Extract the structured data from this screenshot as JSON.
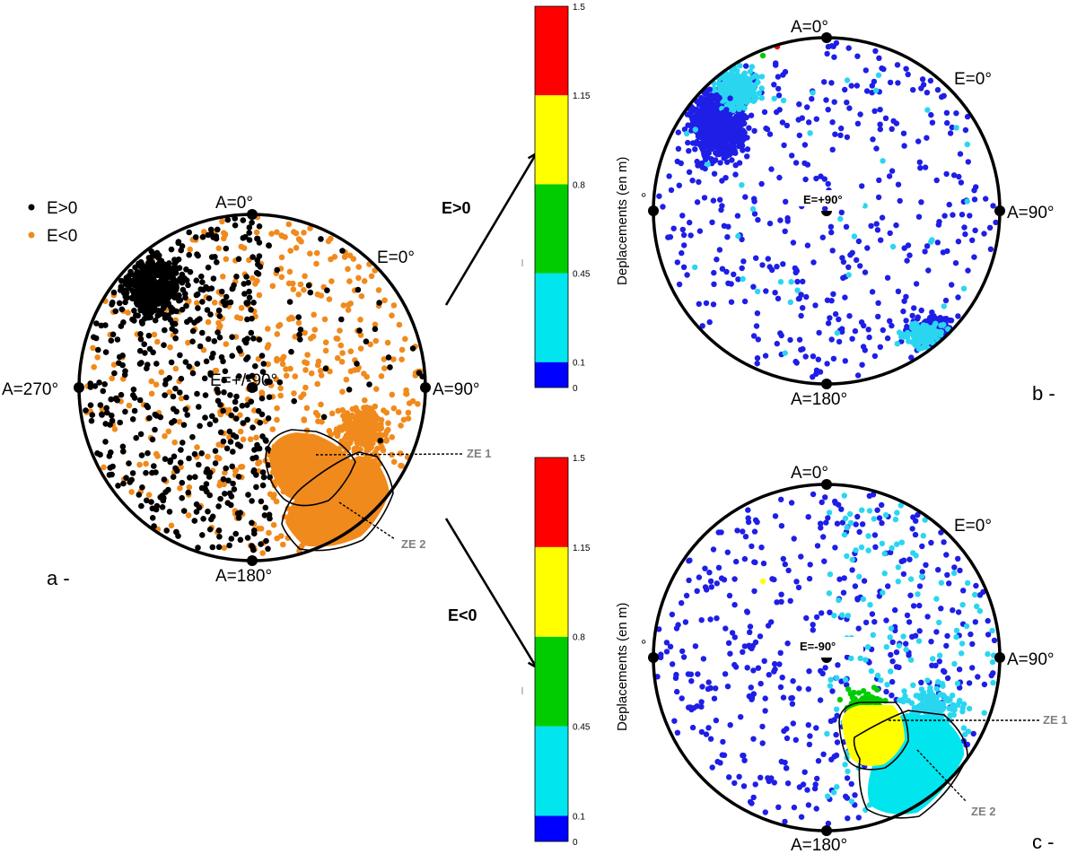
{
  "colors": {
    "e_pos": "#000000",
    "e_neg": "#f08a1c",
    "zone_fill": "#f08a1c",
    "bins": [
      "#0000ff",
      "#00e5ee",
      "#00cc00",
      "#ffff00",
      "#ff0000"
    ],
    "b_points": "#1e1ee6",
    "b_light": "#2ad6ef"
  },
  "panel_a": {
    "legend": [
      {
        "label": "E>0",
        "color": "#000000"
      },
      {
        "label": "E<0",
        "color": "#f08a1c"
      }
    ],
    "azimuth_labels": {
      "top": "A=0°",
      "right": "A=90°",
      "bottom": "A=180°",
      "left": "A=270°"
    },
    "elevation_label": "E=0°",
    "center_label": "E=+/-90°",
    "zones": [
      "ZE 1",
      "ZE 2"
    ],
    "panel_label": "a -"
  },
  "panel_b": {
    "arrow_label": "E>0",
    "colorbar_title": "Deplacements (en m)",
    "colorbar_ticks": [
      "1.5",
      "1.15",
      "0.8",
      "0.45",
      "0.1",
      "0"
    ],
    "azimuth_labels": {
      "top": "A=0°",
      "right": "A=90°",
      "bottom": "A=180°",
      "left": "°"
    },
    "elevation_label": "E=0°",
    "center_label": "E=+90°",
    "panel_label": "b -"
  },
  "panel_c": {
    "arrow_label": "E<0",
    "colorbar_title": "Deplacements (en m)",
    "colorbar_ticks": [
      "1.5",
      "1.15",
      "0.8",
      "0.45",
      "0.1",
      "0"
    ],
    "azimuth_labels": {
      "top": "A=0°",
      "right": "A=90°",
      "bottom": "A=180°",
      "left": "°"
    },
    "elevation_label": "E=0°",
    "center_label": "E=-90°",
    "zones": [
      "ZE 1",
      "ZE 2"
    ],
    "panel_label": "c -"
  },
  "chart_data": [
    {
      "type": "scatter",
      "projection": "polar stereonet",
      "series": [
        {
          "name": "E>0"
        },
        {
          "name": "E<0"
        }
      ],
      "angular_axis": [
        "A=0°",
        "A=90°",
        "A=180°",
        "A=270°"
      ]
    },
    {
      "type": "scatter",
      "projection": "polar stereonet",
      "color_scale": {
        "title": "Deplacements (en m)",
        "bin_edges": [
          0,
          0.1,
          0.45,
          0.8,
          1.15,
          1.5
        ]
      }
    },
    {
      "type": "scatter",
      "projection": "polar stereonet",
      "color_scale": {
        "title": "Deplacements (en m)",
        "bin_edges": [
          0,
          0.1,
          0.45,
          0.8,
          1.15,
          1.5
        ]
      }
    }
  ]
}
